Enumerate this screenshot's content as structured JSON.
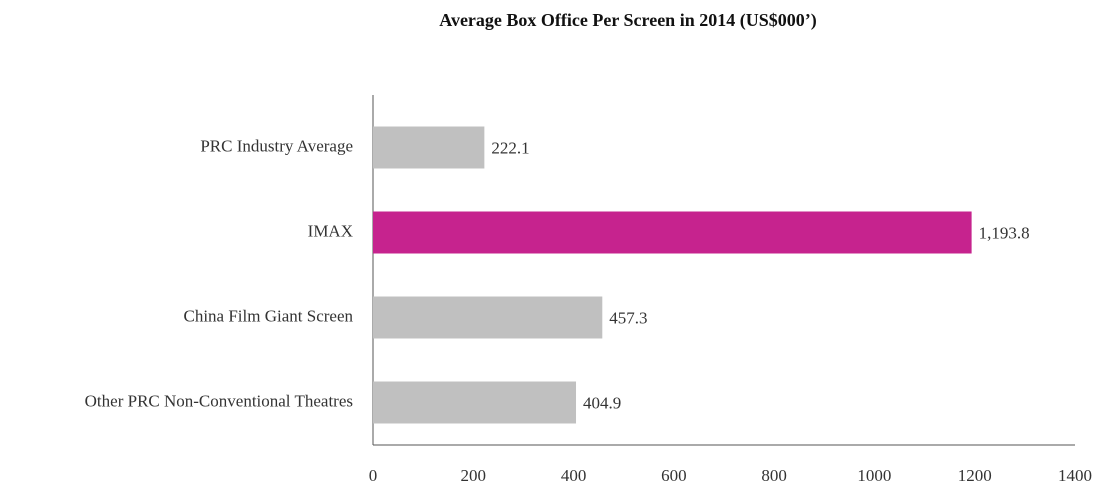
{
  "chart_data": {
    "type": "barh",
    "title": "Average Box Office Per Screen in 2014 (US$000’)",
    "categories": [
      "PRC Industry Average",
      "IMAX",
      "China Film Giant Screen",
      "Other PRC Non-Conventional Theatres"
    ],
    "values": [
      222.1,
      1193.8,
      457.3,
      404.9
    ],
    "value_labels": [
      "222.1",
      "1,193.8",
      "457.3",
      "404.9"
    ],
    "colors": [
      "#c0c0c0",
      "#c6238e",
      "#c0c0c0",
      "#c0c0c0"
    ],
    "xlim": [
      0,
      1400
    ],
    "xticks": [
      0,
      200,
      400,
      600,
      800,
      1000,
      1200,
      1400
    ],
    "grid": false
  }
}
